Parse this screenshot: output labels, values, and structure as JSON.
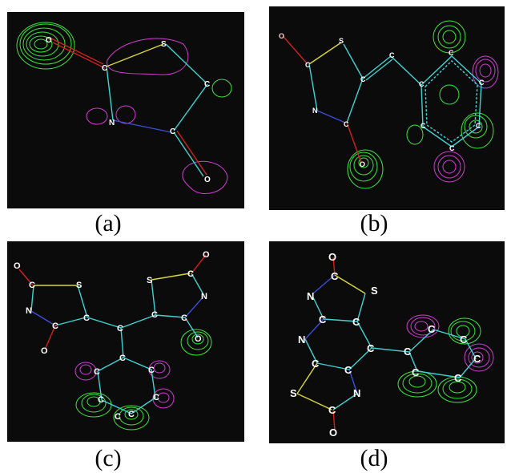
{
  "colors": {
    "background": "#0b0b0b",
    "bond": "#3fd3d3",
    "bond_s": "#d8d838",
    "bond_n": "#3a4fd8",
    "bond_o": "#d02020",
    "lobe_green": "#3ce63c",
    "lobe_magenta": "#d23cd2",
    "atom_label": "#ffffff",
    "atom_label_o_small": "#ffd0d0",
    "caption": "#000000"
  },
  "panels": [
    {
      "caption": "(a)",
      "atoms": [
        {
          "label": "O"
        },
        {
          "label": "C"
        },
        {
          "label": "S"
        },
        {
          "label": "C"
        },
        {
          "label": "N"
        },
        {
          "label": "C"
        },
        {
          "label": "O"
        }
      ]
    },
    {
      "caption": "(b)",
      "atoms": [
        {
          "label": "O"
        },
        {
          "label": "C"
        },
        {
          "label": "S"
        },
        {
          "label": "N"
        },
        {
          "label": "C"
        },
        {
          "label": "O"
        },
        {
          "label": "C"
        },
        {
          "label": "C"
        },
        {
          "label": "C"
        },
        {
          "label": "C"
        },
        {
          "label": "C"
        },
        {
          "label": "C"
        },
        {
          "label": "C"
        },
        {
          "label": "C"
        }
      ]
    },
    {
      "caption": "(c)",
      "atoms": [
        {
          "label": "O"
        },
        {
          "label": "C"
        },
        {
          "label": "S"
        },
        {
          "label": "N"
        },
        {
          "label": "C"
        },
        {
          "label": "C"
        },
        {
          "label": "O"
        },
        {
          "label": "C"
        },
        {
          "label": "C"
        },
        {
          "label": "S"
        },
        {
          "label": "C"
        },
        {
          "label": "O"
        },
        {
          "label": "N"
        },
        {
          "label": "C"
        },
        {
          "label": "C"
        },
        {
          "label": "O"
        },
        {
          "label": "C"
        },
        {
          "label": "C"
        },
        {
          "label": "C"
        },
        {
          "label": "C"
        },
        {
          "label": "C"
        },
        {
          "label": "C"
        }
      ]
    },
    {
      "caption": "(d)",
      "atoms": [
        {
          "label": "O"
        },
        {
          "label": "C"
        },
        {
          "label": "S"
        },
        {
          "label": "N"
        },
        {
          "label": "C"
        },
        {
          "label": "C"
        },
        {
          "label": "N"
        },
        {
          "label": "C"
        },
        {
          "label": "C"
        },
        {
          "label": "C"
        },
        {
          "label": "S"
        },
        {
          "label": "N"
        },
        {
          "label": "C"
        },
        {
          "label": "O"
        },
        {
          "label": "C"
        },
        {
          "label": "C"
        },
        {
          "label": "C"
        },
        {
          "label": "C"
        },
        {
          "label": "C"
        },
        {
          "label": "C"
        }
      ]
    }
  ]
}
